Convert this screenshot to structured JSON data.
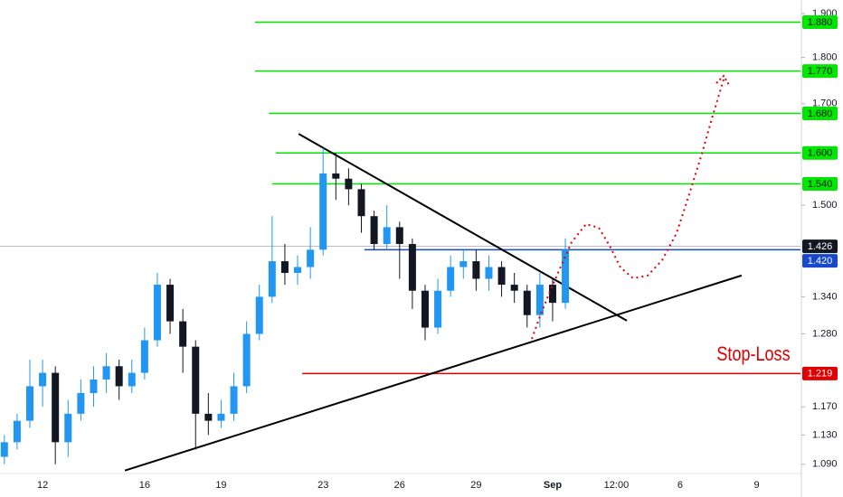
{
  "chart_data": {
    "type": "candlestick",
    "annotation": "Stop-Loss",
    "annotation_color": "#e00000",
    "up_color": "#2196f3",
    "down_color": "#131722",
    "log_scale": true,
    "xlim": [
      -1.67,
      29.72
    ],
    "ylim": [
      1.08,
      1.932
    ],
    "xticks": [
      {
        "value": 0,
        "label": "12"
      },
      {
        "value": 4,
        "label": "16"
      },
      {
        "value": 7,
        "label": "19"
      },
      {
        "value": 11,
        "label": "23"
      },
      {
        "value": 14,
        "label": "26"
      },
      {
        "value": 17,
        "label": "29"
      },
      {
        "value": 20,
        "label": "Sep"
      },
      {
        "value": 22.5,
        "label": "12:00"
      },
      {
        "value": 25,
        "label": "6"
      },
      {
        "value": 28,
        "label": "9"
      }
    ],
    "yticks": [
      {
        "value": 1.09,
        "label": "1.090"
      },
      {
        "value": 1.13,
        "label": "1.130"
      },
      {
        "value": 1.17,
        "label": "1.170"
      },
      {
        "value": 1.28,
        "label": "1.280"
      },
      {
        "value": 1.34,
        "label": "1.340"
      },
      {
        "value": 1.5,
        "label": "1.500"
      },
      {
        "value": 1.7,
        "label": "1.700"
      },
      {
        "value": 1.8,
        "label": "1.800"
      },
      {
        "value": 1.9,
        "label": "1.900"
      }
    ],
    "x": [
      -1.5,
      -1,
      -0.5,
      0,
      0.5,
      1,
      1.5,
      2,
      2.5,
      3,
      3.5,
      4,
      4.5,
      5,
      5.5,
      6,
      6.5,
      7,
      7.5,
      8,
      8.5,
      9,
      9.5,
      10,
      10.5,
      11,
      11.5,
      12,
      12.5,
      13,
      13.5,
      14,
      14.5,
      15,
      15.5,
      16,
      16.5,
      17,
      17.5,
      18,
      18.5,
      19,
      19.5,
      20,
      20.5
    ],
    "open": [
      1.1,
      1.12,
      1.15,
      1.2,
      1.22,
      1.12,
      1.16,
      1.19,
      1.21,
      1.23,
      1.2,
      1.22,
      1.27,
      1.36,
      1.3,
      1.26,
      1.16,
      1.15,
      1.16,
      1.2,
      1.28,
      1.34,
      1.4,
      1.38,
      1.39,
      1.42,
      1.56,
      1.55,
      1.53,
      1.48,
      1.43,
      1.46,
      1.43,
      1.35,
      1.29,
      1.35,
      1.39,
      1.4,
      1.37,
      1.39,
      1.36,
      1.35,
      1.31,
      1.36,
      1.33
    ],
    "high": [
      1.13,
      1.16,
      1.24,
      1.24,
      1.23,
      1.18,
      1.21,
      1.23,
      1.25,
      1.24,
      1.24,
      1.29,
      1.38,
      1.37,
      1.32,
      1.27,
      1.19,
      1.18,
      1.22,
      1.3,
      1.36,
      1.48,
      1.43,
      1.41,
      1.46,
      1.61,
      1.6,
      1.57,
      1.54,
      1.49,
      1.5,
      1.47,
      1.44,
      1.36,
      1.37,
      1.41,
      1.42,
      1.42,
      1.41,
      1.4,
      1.38,
      1.36,
      1.38,
      1.37,
      1.44
    ],
    "low": [
      1.09,
      1.11,
      1.14,
      1.17,
      1.09,
      1.1,
      1.15,
      1.17,
      1.19,
      1.18,
      1.19,
      1.21,
      1.26,
      1.28,
      1.22,
      1.11,
      1.13,
      1.14,
      1.15,
      1.19,
      1.27,
      1.33,
      1.36,
      1.36,
      1.37,
      1.41,
      1.51,
      1.5,
      1.45,
      1.42,
      1.42,
      1.37,
      1.32,
      1.27,
      1.28,
      1.34,
      1.37,
      1.35,
      1.35,
      1.34,
      1.33,
      1.29,
      1.29,
      1.3,
      1.32
    ],
    "close": [
      1.12,
      1.15,
      1.2,
      1.22,
      1.12,
      1.16,
      1.19,
      1.21,
      1.23,
      1.2,
      1.22,
      1.27,
      1.36,
      1.3,
      1.26,
      1.16,
      1.15,
      1.16,
      1.2,
      1.28,
      1.34,
      1.4,
      1.38,
      1.39,
      1.42,
      1.56,
      1.55,
      1.53,
      1.48,
      1.43,
      1.46,
      1.43,
      1.35,
      1.29,
      1.35,
      1.39,
      1.4,
      1.37,
      1.39,
      1.36,
      1.35,
      1.31,
      1.36,
      1.33,
      1.42
    ],
    "last_price": {
      "value": 1.426,
      "label": "1.426",
      "color": "#131722"
    },
    "levels": [
      {
        "value": 1.88,
        "label": "1.880",
        "color": "#00e600",
        "start": 8.33
      },
      {
        "value": 1.77,
        "label": "1.770",
        "color": "#00e600",
        "start": 8.33
      },
      {
        "value": 1.68,
        "label": "1.680",
        "color": "#00e600",
        "start": 8.87
      },
      {
        "value": 1.6,
        "label": "1.600",
        "color": "#00e600",
        "start": 9.15
      },
      {
        "value": 1.54,
        "label": "1.540",
        "color": "#00e600",
        "start": 9.0
      },
      {
        "value": 1.42,
        "label": "1.420",
        "color": "#1848cc",
        "start": 12.62
      },
      {
        "value": 1.219,
        "label": "1.219",
        "color": "#e00000",
        "start": 10.18
      }
    ],
    "trendlines": [
      {
        "x": [
          10.04,
          22.91
        ],
        "y": [
          1.638,
          1.301
        ],
        "color": "#000000"
      },
      {
        "x": [
          3.23,
          27.41
        ],
        "y": [
          1.0816,
          1.3756
        ],
        "color": "#000000"
      }
    ]
  }
}
